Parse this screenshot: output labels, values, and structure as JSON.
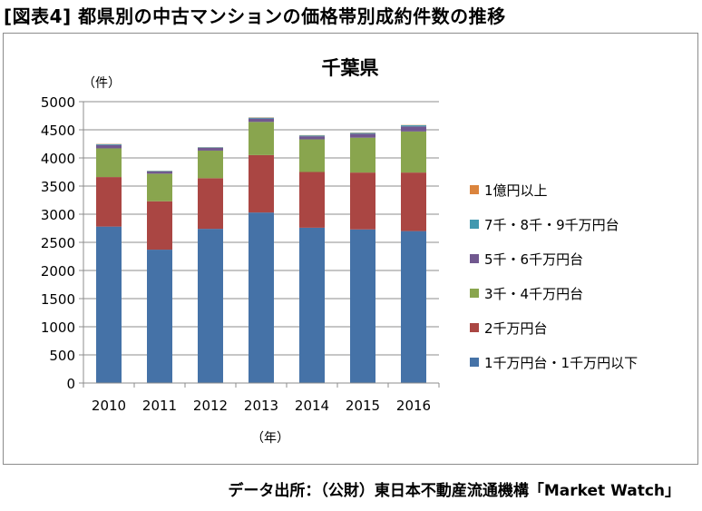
{
  "figure_title": "[図表4] 都県別の中古マンションの価格帯別成約件数の推移",
  "source": "データ出所：（公財）東日本不動産流通機構「Market Watch」",
  "chart_data": {
    "type": "bar",
    "stacked": true,
    "title": "千葉県",
    "ylabel": "（件）",
    "xlabel": "（年）",
    "ylim": [
      0,
      5000
    ],
    "yticks": [
      0,
      500,
      1000,
      1500,
      2000,
      2500,
      3000,
      3500,
      4000,
      4500,
      5000
    ],
    "grid": true,
    "legend_position": "right",
    "categories": [
      "2010",
      "2011",
      "2012",
      "2013",
      "2014",
      "2015",
      "2016"
    ],
    "series": [
      {
        "name": "1千万円台・1千万円以下",
        "color": "#4572a7",
        "values": [
          2780,
          2370,
          2740,
          3030,
          2760,
          2730,
          2700
        ]
      },
      {
        "name": "2千万円台",
        "color": "#aa4643",
        "values": [
          880,
          860,
          900,
          1020,
          990,
          1010,
          1040
        ]
      },
      {
        "name": "3千・4千万円台",
        "color": "#89a54e",
        "values": [
          510,
          490,
          490,
          590,
          580,
          620,
          730
        ]
      },
      {
        "name": "5千・6千万円台",
        "color": "#71588f",
        "values": [
          60,
          40,
          50,
          60,
          55,
          70,
          90
        ]
      },
      {
        "name": "7千・8千・9千万円台",
        "color": "#4198af",
        "values": [
          15,
          10,
          10,
          15,
          15,
          15,
          20
        ]
      },
      {
        "name": "1億円以上",
        "color": "#db843d",
        "values": [
          5,
          3,
          3,
          5,
          5,
          5,
          5
        ]
      }
    ]
  }
}
